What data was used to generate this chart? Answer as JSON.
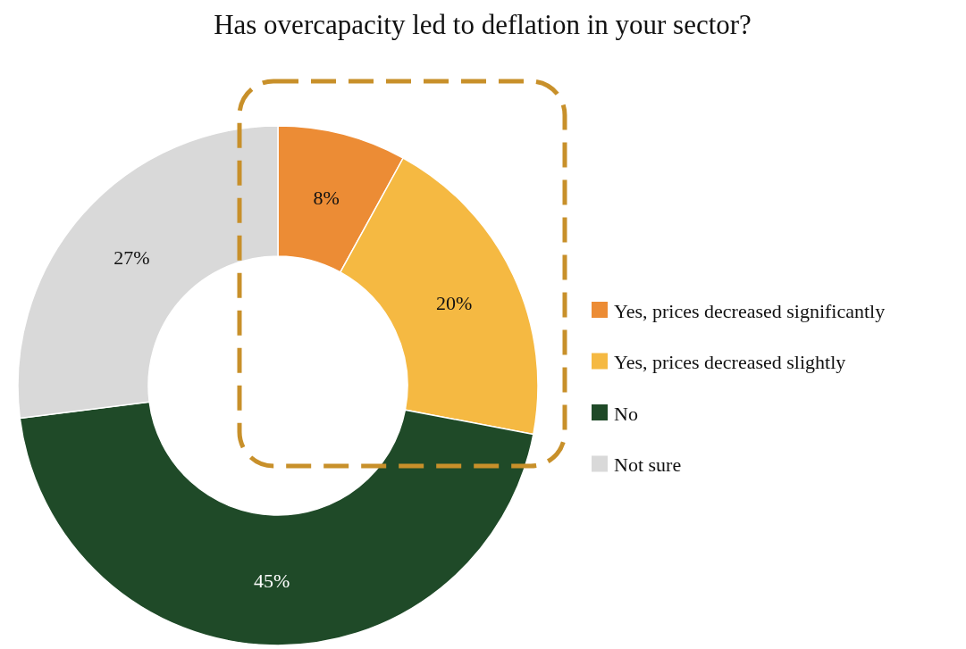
{
  "chart_data": {
    "type": "donut",
    "title": "Has overcapacity led to deflation in your sector?",
    "categories": [
      "Yes, prices decreased significantly",
      "Yes, prices decreased slightly",
      "No",
      "Not sure"
    ],
    "values": [
      8,
      20,
      45,
      27
    ],
    "colors": [
      "#ec8c35",
      "#f5b942",
      "#1f4a28",
      "#d9d9d9"
    ],
    "value_labels": [
      "8%",
      "20%",
      "45%",
      "27%"
    ],
    "legend": "right"
  }
}
